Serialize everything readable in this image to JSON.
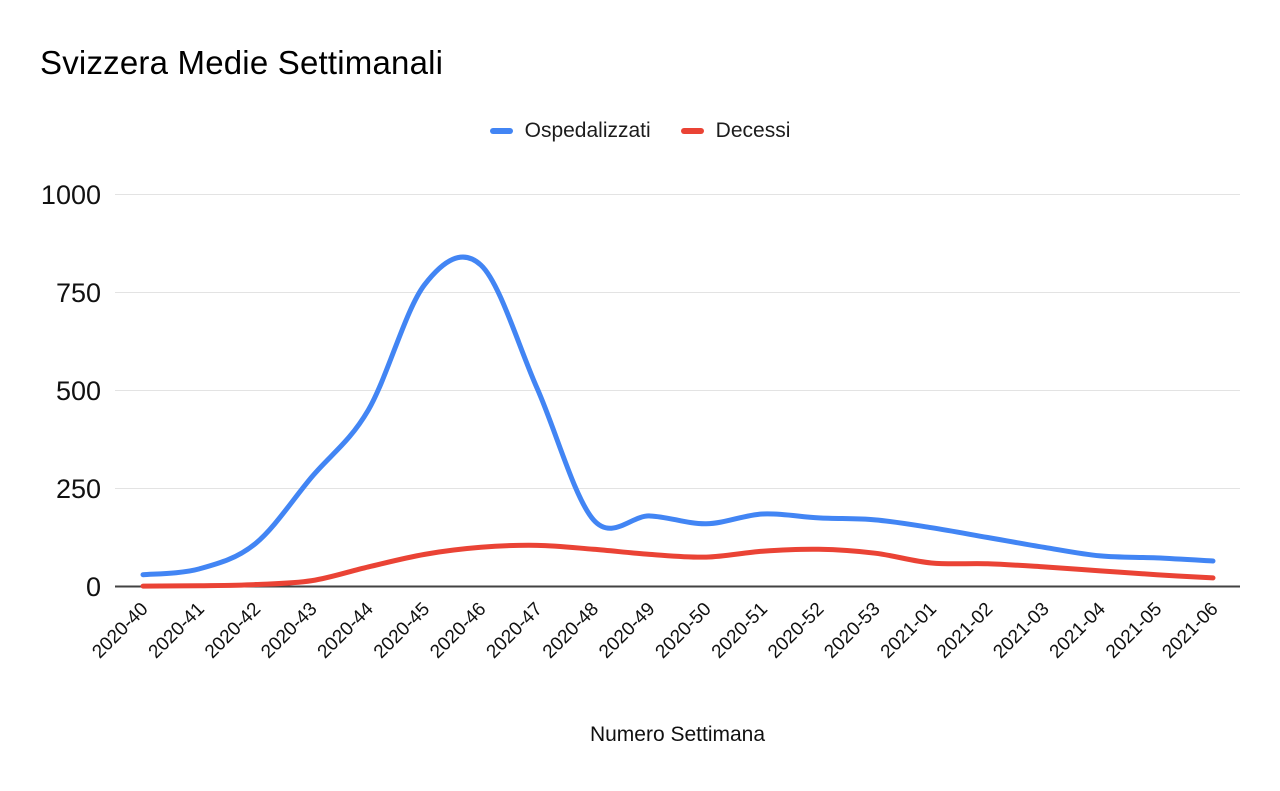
{
  "title": "Svizzera Medie Settimanali",
  "legend": [
    {
      "label": "Ospedalizzati",
      "color": "#4285F4"
    },
    {
      "label": "Decessi",
      "color": "#EA4335"
    }
  ],
  "chart_data": {
    "type": "line",
    "smooth": true,
    "title": "Svizzera Medie Settimanali",
    "xlabel": "Numero Settimana",
    "ylabel": "",
    "ylim": [
      0,
      1000
    ],
    "yticks": [
      0,
      250,
      500,
      750,
      1000
    ],
    "grid": true,
    "legend_position": "top",
    "categories": [
      "2020-40",
      "2020-41",
      "2020-42",
      "2020-43",
      "2020-44",
      "2020-45",
      "2020-46",
      "2020-47",
      "2020-48",
      "2020-49",
      "2020-50",
      "2020-51",
      "2020-52",
      "2020-53",
      "2021-01",
      "2021-02",
      "2021-03",
      "2021-04",
      "2021-05",
      "2021-06"
    ],
    "series": [
      {
        "name": "Ospedalizzati",
        "color": "#4285F4",
        "values": [
          30,
          45,
          110,
          280,
          450,
          770,
          820,
          505,
          170,
          180,
          160,
          185,
          175,
          170,
          150,
          125,
          100,
          78,
          73,
          65
        ]
      },
      {
        "name": "Decessi",
        "color": "#EA4335",
        "values": [
          1,
          2,
          5,
          15,
          50,
          82,
          100,
          105,
          95,
          82,
          75,
          90,
          95,
          85,
          60,
          58,
          50,
          40,
          30,
          22
        ]
      }
    ]
  },
  "colors": {
    "background": "#ffffff",
    "gridline": "#e3e3e3",
    "axis_line": "#424242",
    "text": "#111111"
  }
}
